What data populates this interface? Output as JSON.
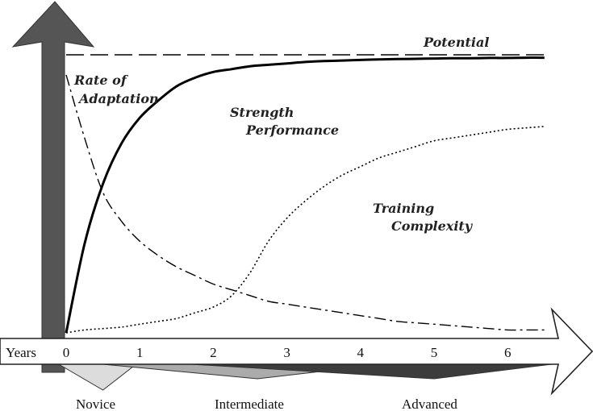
{
  "chart_data": {
    "type": "line",
    "title": "",
    "xlabel": "Years",
    "ylabel": "",
    "xlim": [
      0,
      6.5
    ],
    "ylim": [
      0,
      1
    ],
    "x_ticks": [
      "0",
      "1",
      "2",
      "3",
      "4",
      "5",
      "6"
    ],
    "x": [
      0,
      0.25,
      0.5,
      0.75,
      1,
      1.25,
      1.5,
      1.75,
      2,
      2.25,
      2.5,
      2.75,
      3,
      3.25,
      3.5,
      3.75,
      4,
      4.25,
      4.5,
      4.75,
      5,
      5.25,
      5.5,
      5.75,
      6,
      6.25,
      6.5
    ],
    "series": [
      {
        "name": "Potential",
        "style": "dashed",
        "values": [
          0.97,
          0.97,
          0.97,
          0.97,
          0.97,
          0.97,
          0.97,
          0.97,
          0.97,
          0.97,
          0.97,
          0.97,
          0.97,
          0.97,
          0.97,
          0.97,
          0.97,
          0.97,
          0.97,
          0.97,
          0.97,
          0.97,
          0.97,
          0.97,
          0.97,
          0.97,
          0.97
        ]
      },
      {
        "name": "Strength Performance",
        "style": "solid",
        "values": [
          0.0,
          0.31,
          0.52,
          0.66,
          0.75,
          0.81,
          0.86,
          0.89,
          0.91,
          0.92,
          0.93,
          0.935,
          0.94,
          0.945,
          0.948,
          0.95,
          0.952,
          0.954,
          0.955,
          0.956,
          0.957,
          0.958,
          0.958,
          0.959,
          0.959,
          0.96,
          0.96
        ]
      },
      {
        "name": "Training Complexity",
        "style": "dotted",
        "values": [
          0.0,
          0.01,
          0.015,
          0.02,
          0.03,
          0.04,
          0.05,
          0.07,
          0.09,
          0.13,
          0.21,
          0.32,
          0.4,
          0.46,
          0.51,
          0.55,
          0.58,
          0.61,
          0.63,
          0.65,
          0.67,
          0.68,
          0.69,
          0.7,
          0.71,
          0.715,
          0.72
        ]
      },
      {
        "name": "Rate of Adaptation",
        "style": "dash-dot",
        "values": [
          0.9,
          0.68,
          0.49,
          0.39,
          0.32,
          0.27,
          0.23,
          0.2,
          0.17,
          0.15,
          0.13,
          0.11,
          0.1,
          0.09,
          0.08,
          0.07,
          0.06,
          0.05,
          0.04,
          0.035,
          0.03,
          0.025,
          0.02,
          0.015,
          0.01,
          0.01,
          0.01
        ]
      }
    ],
    "stages": [
      {
        "name": "Novice",
        "shade": "#dcdcdc",
        "start": -0.1,
        "peak": 0.5,
        "end": 0.95
      },
      {
        "name": "Intermediate",
        "shade": "#ababab",
        "start": 0.5,
        "peak": 2.6,
        "end": 4.3
      },
      {
        "name": "Advanced",
        "shade": "#3c3c3c",
        "start": 1.7,
        "peak": 5.0,
        "end": 6.6
      }
    ],
    "colors": {
      "axis": "#555555",
      "line": "#000000"
    }
  }
}
